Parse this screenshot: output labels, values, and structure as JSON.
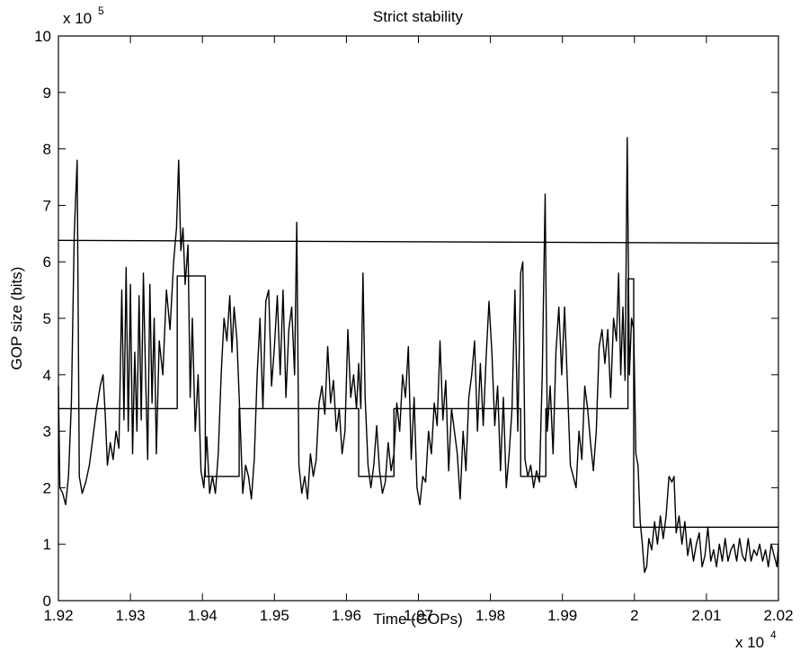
{
  "chart_data": {
    "type": "line",
    "title": "Strict stability",
    "xlabel": "Time (GOPs)",
    "ylabel": "GOP size (bits)",
    "x_multiplier": {
      "base": "x 10",
      "exponent": "4"
    },
    "y_multiplier": {
      "base": "x 10",
      "exponent": "5"
    },
    "xlim": [
      1.92,
      2.02
    ],
    "xticks": [
      1.92,
      1.93,
      1.94,
      1.95,
      1.96,
      1.97,
      1.98,
      1.99,
      2,
      2.01,
      2.02
    ],
    "ylim": [
      0,
      10
    ],
    "yticks": [
      0,
      1,
      2,
      3,
      4,
      5,
      6,
      7,
      8,
      9,
      10
    ],
    "grid": false,
    "series": [
      {
        "color": "#000000",
        "x": [
          1.92,
          1.9202,
          1.9206,
          1.921,
          1.9214,
          1.9218,
          1.9222,
          1.9226,
          1.9229,
          1.9233,
          1.9238,
          1.9243,
          1.9248,
          1.9253,
          1.9258,
          1.9262,
          1.9265,
          1.9268,
          1.9272,
          1.9276,
          1.928,
          1.9284,
          1.9288,
          1.9291,
          1.9294,
          1.9297,
          1.93,
          1.9303,
          1.9306,
          1.9309,
          1.9312,
          1.9315,
          1.9318,
          1.9321,
          1.9324,
          1.9327,
          1.933,
          1.9333,
          1.9336,
          1.934,
          1.9345,
          1.935,
          1.9355,
          1.936,
          1.9364,
          1.9367,
          1.937,
          1.9373,
          1.9376,
          1.938,
          1.9383,
          1.9386,
          1.939,
          1.9394,
          1.9398,
          1.9402,
          1.9406,
          1.941,
          1.9414,
          1.9418,
          1.9422,
          1.9426,
          1.943,
          1.9434,
          1.9438,
          1.9441,
          1.9444,
          1.9448,
          1.9452,
          1.9456,
          1.946,
          1.9464,
          1.9468,
          1.9472,
          1.9476,
          1.948,
          1.9484,
          1.9488,
          1.9492,
          1.9496,
          1.95,
          1.9504,
          1.9508,
          1.9512,
          1.9516,
          1.952,
          1.9524,
          1.9528,
          1.9531,
          1.9534,
          1.9538,
          1.9542,
          1.9546,
          1.955,
          1.9554,
          1.9558,
          1.9562,
          1.9566,
          1.957,
          1.9574,
          1.9578,
          1.9582,
          1.9586,
          1.959,
          1.9594,
          1.9598,
          1.9602,
          1.9606,
          1.961,
          1.9614,
          1.9617,
          1.962,
          1.9623,
          1.9626,
          1.963,
          1.9634,
          1.9638,
          1.9642,
          1.9646,
          1.965,
          1.9654,
          1.9658,
          1.9662,
          1.9666,
          1.967,
          1.9674,
          1.9678,
          1.9682,
          1.9686,
          1.969,
          1.9694,
          1.9698,
          1.9702,
          1.9706,
          1.971,
          1.9714,
          1.9718,
          1.9722,
          1.9726,
          1.973,
          1.9734,
          1.9738,
          1.9742,
          1.9746,
          1.975,
          1.9754,
          1.9758,
          1.9762,
          1.9766,
          1.977,
          1.9774,
          1.9778,
          1.9782,
          1.9786,
          1.979,
          1.9794,
          1.9798,
          1.9802,
          1.9806,
          1.981,
          1.9814,
          1.9818,
          1.9822,
          1.9826,
          1.983,
          1.9834,
          1.9838,
          1.9842,
          1.9845,
          1.9848,
          1.9852,
          1.9856,
          1.986,
          1.9864,
          1.9868,
          1.9872,
          1.9876,
          1.9879,
          1.9883,
          1.9887,
          1.9891,
          1.9895,
          1.9899,
          1.9903,
          1.9907,
          1.9911,
          1.9915,
          1.9919,
          1.9923,
          1.9927,
          1.9931,
          1.9935,
          1.9939,
          1.9943,
          1.9947,
          1.9951,
          1.9955,
          1.9959,
          1.9963,
          1.9967,
          1.9971,
          1.9975,
          1.9978,
          1.9981,
          1.9984,
          1.9987,
          1.999,
          1.9993,
          1.9996,
          1.9999,
          2.0002,
          2.0005,
          2.0008,
          2.0011,
          2.0014,
          2.0017,
          2.002,
          2.0024,
          2.0028,
          2.0032,
          2.0036,
          2.004,
          2.0044,
          2.0048,
          2.0052,
          2.0055,
          2.0058,
          2.0062,
          2.0066,
          2.007,
          2.0074,
          2.0078,
          2.0082,
          2.0086,
          2.009,
          2.0094,
          2.0098,
          2.0102,
          2.0106,
          2.011,
          2.0114,
          2.0118,
          2.0122,
          2.0126,
          2.013,
          2.0134,
          2.0138,
          2.0142,
          2.0146,
          2.015,
          2.0154,
          2.0158,
          2.0162,
          2.0166,
          2.017,
          2.0174,
          2.0178,
          2.0182,
          2.0186,
          2.019,
          2.0194,
          2.0198,
          2.02
        ],
        "values": [
          3.8,
          2.0,
          1.9,
          1.7,
          2.2,
          3.5,
          6.5,
          7.8,
          2.2,
          1.9,
          2.1,
          2.4,
          2.9,
          3.4,
          3.8,
          4.0,
          3.3,
          2.4,
          2.8,
          2.5,
          3.0,
          2.7,
          5.5,
          3.2,
          5.9,
          3.0,
          5.6,
          2.6,
          4.4,
          3.0,
          5.4,
          3.2,
          5.8,
          4.0,
          2.5,
          5.6,
          3.5,
          5.0,
          2.6,
          4.6,
          4.0,
          5.5,
          4.8,
          6.0,
          6.6,
          7.8,
          6.2,
          6.6,
          5.6,
          6.3,
          3.6,
          5.0,
          3.0,
          4.0,
          2.3,
          2.0,
          2.9,
          1.9,
          2.2,
          1.9,
          2.6,
          4.0,
          5.0,
          4.6,
          5.4,
          4.4,
          5.2,
          4.6,
          3.3,
          1.9,
          2.4,
          2.2,
          1.8,
          2.5,
          4.0,
          5.0,
          3.4,
          5.3,
          5.5,
          3.8,
          4.5,
          5.4,
          4.0,
          5.5,
          3.6,
          4.8,
          5.2,
          4.0,
          6.7,
          2.4,
          1.9,
          2.2,
          1.8,
          2.6,
          2.2,
          2.5,
          3.5,
          3.8,
          3.3,
          4.5,
          3.5,
          3.9,
          3.0,
          3.4,
          2.6,
          3.0,
          4.8,
          3.6,
          4.0,
          3.4,
          4.2,
          3.4,
          5.8,
          3.6,
          2.4,
          2.0,
          2.4,
          3.1,
          2.3,
          1.9,
          2.1,
          2.8,
          2.3,
          2.6,
          3.5,
          3.0,
          4.0,
          3.6,
          4.5,
          2.5,
          3.6,
          2.0,
          1.7,
          2.2,
          2.1,
          3.0,
          2.6,
          3.5,
          3.1,
          4.6,
          3.2,
          3.9,
          2.3,
          3.4,
          3.0,
          2.6,
          1.8,
          3.0,
          2.3,
          3.6,
          4.0,
          4.6,
          3.0,
          4.2,
          3.1,
          4.3,
          5.3,
          4.4,
          3.1,
          3.8,
          2.3,
          3.6,
          2.0,
          2.6,
          3.4,
          5.5,
          3.0,
          5.8,
          6.0,
          2.5,
          2.2,
          2.4,
          2.0,
          2.3,
          2.1,
          4.0,
          7.2,
          3.0,
          3.8,
          2.6,
          4.4,
          5.2,
          4.0,
          5.2,
          3.8,
          2.4,
          2.2,
          2.0,
          3.0,
          2.5,
          3.8,
          3.4,
          2.8,
          2.3,
          3.0,
          4.5,
          4.8,
          4.2,
          4.8,
          3.6,
          5.0,
          4.6,
          5.8,
          4.0,
          5.2,
          3.9,
          8.2,
          4.0,
          5.0,
          4.8,
          2.6,
          2.4,
          1.4,
          1.0,
          0.5,
          0.6,
          1.1,
          0.9,
          1.4,
          1.0,
          1.5,
          1.1,
          1.5,
          2.2,
          2.1,
          2.2,
          1.2,
          1.5,
          1.0,
          1.4,
          0.8,
          1.1,
          0.7,
          1.0,
          1.2,
          0.6,
          0.8,
          1.3,
          0.7,
          0.9,
          0.6,
          1.0,
          0.7,
          1.1,
          0.7,
          0.9,
          1.0,
          0.7,
          1.1,
          0.8,
          0.7,
          1.1,
          0.7,
          0.9,
          0.8,
          1.0,
          0.7,
          0.9,
          0.6,
          1.0,
          0.8,
          0.6,
          1.0
        ]
      },
      {
        "color": "#000000",
        "x": [
          1.92,
          1.9365,
          1.9365,
          1.9404,
          1.9404,
          1.9451,
          1.9451,
          1.9617,
          1.9617,
          1.9666,
          1.9666,
          1.9842,
          1.9842,
          1.9877,
          1.9877,
          1.9991,
          1.9991,
          1.9999,
          1.9999,
          2.02
        ],
        "values": [
          3.4,
          3.4,
          5.75,
          5.75,
          2.2,
          2.2,
          3.4,
          3.4,
          2.2,
          2.2,
          3.4,
          3.4,
          2.2,
          2.2,
          3.4,
          3.4,
          5.7,
          5.7,
          1.3,
          1.3
        ]
      },
      {
        "color": "#000000",
        "x": [
          1.92,
          2.02
        ],
        "values": [
          6.38,
          6.33
        ]
      }
    ]
  }
}
